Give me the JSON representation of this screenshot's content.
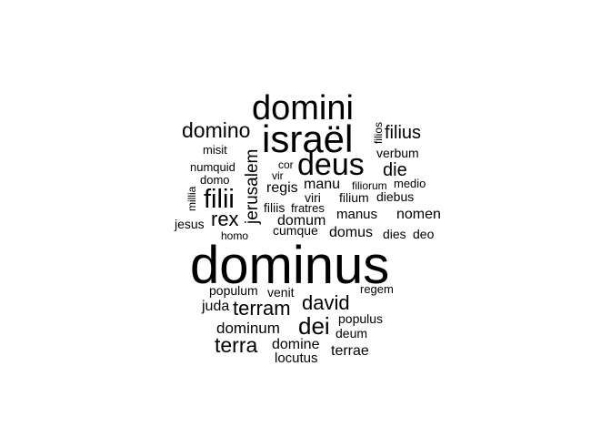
{
  "chart_data": {
    "type": "wordcloud",
    "words": [
      {
        "text": "dominus"
      },
      {
        "text": "domini"
      },
      {
        "text": "israël"
      },
      {
        "text": "deus"
      },
      {
        "text": "domino"
      },
      {
        "text": "filii"
      },
      {
        "text": "filius"
      },
      {
        "text": "rex"
      },
      {
        "text": "jerusalem"
      },
      {
        "text": "die"
      },
      {
        "text": "dei"
      },
      {
        "text": "terram"
      },
      {
        "text": "david"
      },
      {
        "text": "terra"
      },
      {
        "text": "dominum"
      },
      {
        "text": "domine"
      },
      {
        "text": "nomen"
      },
      {
        "text": "regis"
      },
      {
        "text": "manu"
      },
      {
        "text": "domum"
      },
      {
        "text": "domus"
      },
      {
        "text": "manus"
      },
      {
        "text": "verbum"
      },
      {
        "text": "viri"
      },
      {
        "text": "filium"
      },
      {
        "text": "diebus"
      },
      {
        "text": "filiis"
      },
      {
        "text": "fratres"
      },
      {
        "text": "cumque"
      },
      {
        "text": "dies"
      },
      {
        "text": "deo"
      },
      {
        "text": "jesus"
      },
      {
        "text": "filios"
      },
      {
        "text": "misit"
      },
      {
        "text": "numquid"
      },
      {
        "text": "domo"
      },
      {
        "text": "millia"
      },
      {
        "text": "cor"
      },
      {
        "text": "vir"
      },
      {
        "text": "filiorum"
      },
      {
        "text": "medio"
      },
      {
        "text": "homo"
      },
      {
        "text": "populum"
      },
      {
        "text": "venit"
      },
      {
        "text": "regem"
      },
      {
        "text": "juda"
      },
      {
        "text": "populus"
      },
      {
        "text": "deum"
      },
      {
        "text": "locutus"
      },
      {
        "text": "terrae"
      }
    ]
  }
}
